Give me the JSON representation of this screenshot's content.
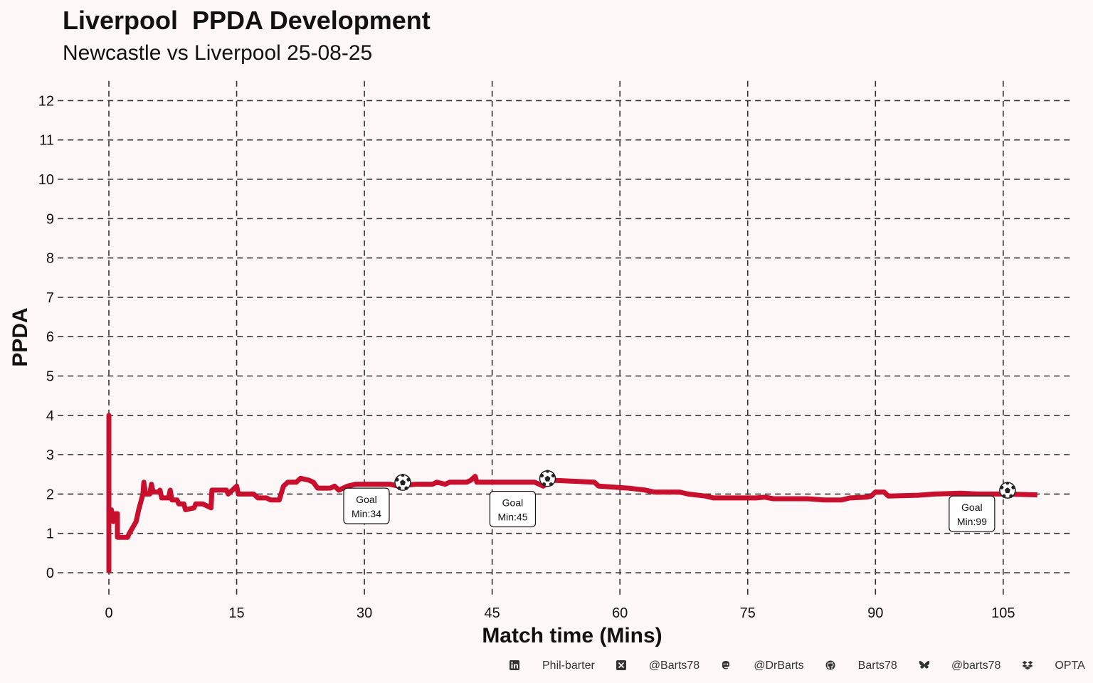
{
  "chart_data": {
    "type": "line",
    "title": "Liverpool  PPDA Development",
    "subtitle": "Newcastle vs Liverpool 25-08-25",
    "xlabel": "Match time (Mins)",
    "ylabel": "PPDA",
    "xlim": [
      -6,
      113
    ],
    "ylim": [
      -0.3,
      12.5
    ],
    "xticks": [
      0,
      15,
      30,
      45,
      60,
      75,
      90,
      105
    ],
    "yticks": [
      0,
      1,
      2,
      3,
      4,
      5,
      6,
      7,
      8,
      9,
      10,
      11,
      12
    ],
    "grid": "dashed",
    "line_color": "#c8102e",
    "series": [
      {
        "values": [
          [
            0,
            0
          ],
          [
            0,
            4
          ],
          [
            0,
            1.6
          ],
          [
            0.3,
            1.6
          ],
          [
            0.5,
            1.3
          ],
          [
            0.8,
            1.5
          ],
          [
            1,
            1.5
          ],
          [
            1,
            0.9
          ],
          [
            2.2,
            0.9
          ],
          [
            2.4,
            1.0
          ],
          [
            3.2,
            1.3
          ],
          [
            3.5,
            1.6
          ],
          [
            4,
            2.0
          ],
          [
            4.1,
            2.3
          ],
          [
            4.3,
            2.0
          ],
          [
            4.8,
            2.0
          ],
          [
            5,
            2.25
          ],
          [
            5.2,
            2.05
          ],
          [
            5.8,
            2.05
          ],
          [
            6,
            2.1
          ],
          [
            6.2,
            1.9
          ],
          [
            7,
            1.9
          ],
          [
            7.2,
            2.1
          ],
          [
            7.4,
            1.85
          ],
          [
            8,
            1.85
          ],
          [
            8.2,
            1.75
          ],
          [
            8.8,
            1.75
          ],
          [
            9,
            1.6
          ],
          [
            10,
            1.65
          ],
          [
            10.2,
            1.75
          ],
          [
            11,
            1.75
          ],
          [
            12,
            1.65
          ],
          [
            12.1,
            2.1
          ],
          [
            13.8,
            2.1
          ],
          [
            14,
            2.0
          ],
          [
            15,
            2.2
          ],
          [
            15.2,
            2.0
          ],
          [
            17,
            2.0
          ],
          [
            17.5,
            1.9
          ],
          [
            18.5,
            1.9
          ],
          [
            19,
            1.85
          ],
          [
            20,
            1.85
          ],
          [
            20.5,
            2.2
          ],
          [
            21,
            2.3
          ],
          [
            22,
            2.3
          ],
          [
            22.5,
            2.4
          ],
          [
            23.5,
            2.35
          ],
          [
            24,
            2.3
          ],
          [
            24.5,
            2.15
          ],
          [
            26,
            2.15
          ],
          [
            26.5,
            2.2
          ],
          [
            27,
            2.1
          ],
          [
            28,
            2.2
          ],
          [
            29,
            2.25
          ],
          [
            33,
            2.25
          ],
          [
            34,
            2.2
          ],
          [
            36,
            2.25
          ],
          [
            38,
            2.25
          ],
          [
            38.5,
            2.3
          ],
          [
            39.5,
            2.25
          ],
          [
            40,
            2.3
          ],
          [
            42,
            2.3
          ],
          [
            42.5,
            2.35
          ],
          [
            43,
            2.45
          ],
          [
            43.2,
            2.3
          ],
          [
            45,
            2.3
          ],
          [
            50,
            2.3
          ],
          [
            51,
            2.2
          ],
          [
            52,
            2.35
          ],
          [
            57,
            2.3
          ],
          [
            57.5,
            2.2
          ],
          [
            61,
            2.15
          ],
          [
            63,
            2.1
          ],
          [
            64,
            2.05
          ],
          [
            65,
            2.05
          ],
          [
            67,
            2.05
          ],
          [
            68,
            2.0
          ],
          [
            70,
            1.95
          ],
          [
            71,
            1.9
          ],
          [
            73,
            1.9
          ],
          [
            76,
            1.9
          ],
          [
            77,
            1.92
          ],
          [
            78,
            1.88
          ],
          [
            80,
            1.88
          ],
          [
            82,
            1.88
          ],
          [
            84,
            1.85
          ],
          [
            86,
            1.85
          ],
          [
            87,
            1.9
          ],
          [
            89,
            1.92
          ],
          [
            89.5,
            1.95
          ],
          [
            90,
            2.05
          ],
          [
            91,
            2.05
          ],
          [
            91.5,
            1.95
          ],
          [
            95,
            1.97
          ],
          [
            97,
            2.0
          ],
          [
            100,
            2.02
          ],
          [
            102,
            2.0
          ],
          [
            105,
            2.0
          ],
          [
            109,
            1.98
          ]
        ]
      }
    ],
    "annotations": [
      {
        "x": 34,
        "y": 2.15,
        "label_line1": "Goal",
        "label_line2": "Min:34",
        "icon": "soccer-ball-icon"
      },
      {
        "x": 51,
        "y": 2.25,
        "label_line1": "Goal",
        "label_line2": "Min:45",
        "icon": "soccer-ball-icon"
      },
      {
        "x": 105,
        "y": 1.95,
        "label_line1": "Goal",
        "label_line2": "Min:99",
        "icon": "soccer-ball-icon"
      }
    ]
  },
  "footer": {
    "items": [
      {
        "icon": "linkedin-icon",
        "text": "Phil-barter"
      },
      {
        "icon": "x-twitter-icon",
        "text": "@Barts78"
      },
      {
        "icon": "mastodon-icon",
        "text": "@DrBarts"
      },
      {
        "icon": "github-icon",
        "text": "Barts78"
      },
      {
        "icon": "bluesky-icon",
        "text": "@barts78"
      },
      {
        "icon": "dropbox-icon",
        "text": "OPTA"
      }
    ]
  }
}
